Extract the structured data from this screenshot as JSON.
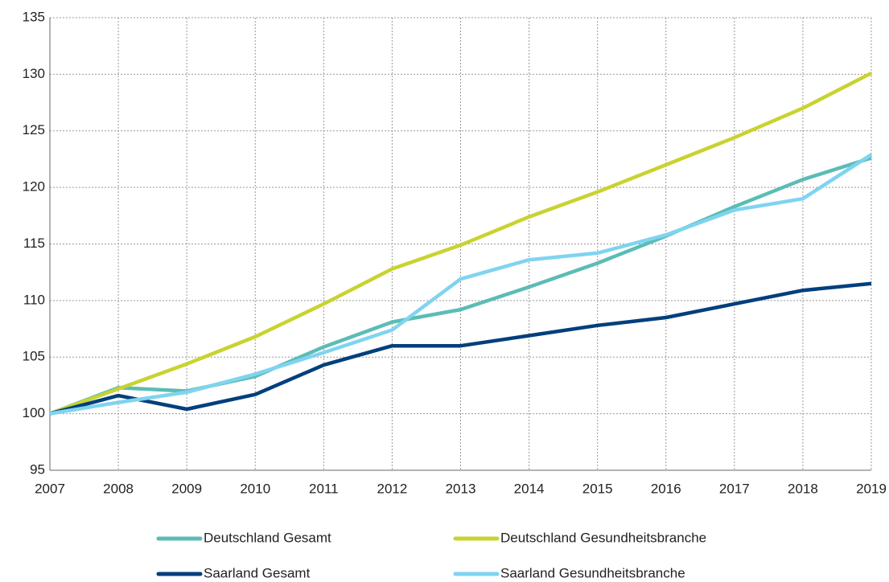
{
  "chart_data": {
    "type": "line",
    "x": [
      2007,
      2008,
      2009,
      2010,
      2011,
      2012,
      2013,
      2014,
      2015,
      2016,
      2017,
      2018,
      2019
    ],
    "xlim": [
      2007,
      2019
    ],
    "xticks": [
      2007,
      2008,
      2009,
      2010,
      2011,
      2012,
      2013,
      2014,
      2015,
      2016,
      2017,
      2018,
      2019
    ],
    "ylim": [
      95,
      135
    ],
    "yticks": [
      95,
      100,
      105,
      110,
      115,
      120,
      125,
      130,
      135
    ],
    "grid": true,
    "legend": "bottom",
    "series": [
      {
        "name": "Deutschland Gesamt",
        "color": "#5bbcb6",
        "values": [
          100,
          102.3,
          102.0,
          103.3,
          105.9,
          108.1,
          109.2,
          111.2,
          113.3,
          115.7,
          118.3,
          120.7,
          122.6
        ]
      },
      {
        "name": "Deutschland Gesundheitsbranche",
        "color": "#c8d32f",
        "values": [
          100,
          102.2,
          104.4,
          106.8,
          109.7,
          112.8,
          114.9,
          117.4,
          119.6,
          122.0,
          124.4,
          127.0,
          130.1
        ]
      },
      {
        "name": "Saarland Gesamt",
        "color": "#003f7d",
        "values": [
          100,
          101.6,
          100.4,
          101.7,
          104.3,
          106.0,
          106.0,
          106.9,
          107.8,
          108.5,
          109.7,
          110.9,
          111.5
        ]
      },
      {
        "name": "Saarland Gesundheitsbranche",
        "color": "#7fd4ef",
        "values": [
          100,
          101.0,
          101.9,
          103.5,
          105.4,
          107.4,
          111.9,
          113.6,
          114.2,
          115.8,
          118.0,
          119.0,
          122.9
        ]
      }
    ]
  }
}
